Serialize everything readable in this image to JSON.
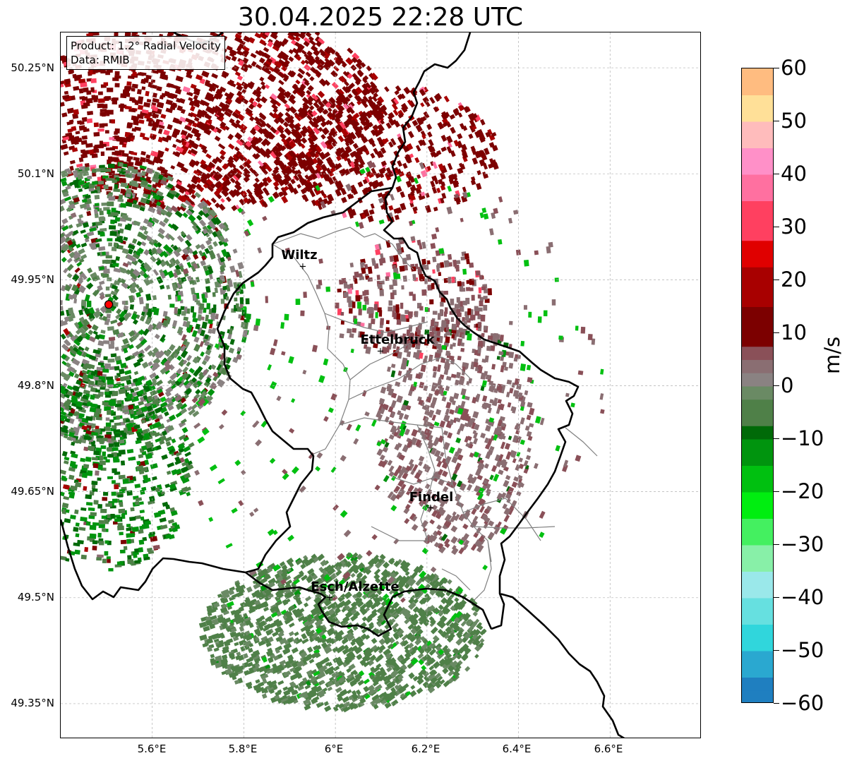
{
  "title": "30.04.2025 22:28 UTC",
  "info": {
    "product": "Product: 1.2° Radial Velocity",
    "source": "Data: RMIB"
  },
  "axes": {
    "lat_ticks": [
      "50.25°N",
      "50.1°N",
      "49.95°N",
      "49.8°N",
      "49.65°N",
      "49.5°N",
      "49.35°N"
    ],
    "lon_ticks": [
      "5.6°E",
      "5.8°E",
      "6°E",
      "6.2°E",
      "6.4°E",
      "6.6°E"
    ],
    "lat_values": [
      50.25,
      50.1,
      49.95,
      49.8,
      49.65,
      49.5,
      49.35
    ],
    "lon_values": [
      5.6,
      5.8,
      6.0,
      6.2,
      6.4,
      6.6
    ],
    "lon_range": [
      5.4,
      6.8
    ],
    "lat_range": [
      49.3,
      50.3
    ]
  },
  "cities": [
    {
      "name": "Wiltz",
      "lon": 5.94,
      "lat": 49.97
    },
    {
      "name": "Ettelbruck",
      "lon": 6.1,
      "lat": 49.85
    },
    {
      "name": "Findel",
      "lon": 6.21,
      "lat": 49.63
    },
    {
      "name": "Esch/Alzette",
      "lon": 5.99,
      "lat": 49.5
    }
  ],
  "radar_site": {
    "lon": 5.505,
    "lat": 49.915,
    "color": "#ff0000"
  },
  "colorbar": {
    "label": "m/s",
    "min": -60,
    "max": 60,
    "ticks": [
      "60",
      "50",
      "40",
      "30",
      "20",
      "10",
      "0",
      "−10",
      "−20",
      "−30",
      "−40",
      "−50",
      "−60"
    ],
    "tick_values": [
      60,
      50,
      40,
      30,
      20,
      10,
      0,
      -10,
      -20,
      -30,
      -40,
      -50,
      -60
    ],
    "stops": [
      {
        "v": -60,
        "color": "#1f7fc0"
      },
      {
        "v": -55,
        "color": "#2aa8d0"
      },
      {
        "v": -50,
        "color": "#30d6dc"
      },
      {
        "v": -45,
        "color": "#66e0e0"
      },
      {
        "v": -40,
        "color": "#9ae8ea"
      },
      {
        "v": -36,
        "color": "#bdeff0"
      },
      {
        "v": -34,
        "color": "#88f0a8"
      },
      {
        "v": -30,
        "color": "#44f060"
      },
      {
        "v": -25,
        "color": "#00ee10"
      },
      {
        "v": -20,
        "color": "#00c010"
      },
      {
        "v": -15,
        "color": "#00940e"
      },
      {
        "v": -10,
        "color": "#006a08"
      },
      {
        "v": -7,
        "color": "#4f8048"
      },
      {
        "v": -3,
        "color": "#6a8a64"
      },
      {
        "v": 0,
        "color": "#8a8282"
      },
      {
        "v": 3,
        "color": "#8a6e72"
      },
      {
        "v": 6,
        "color": "#8a5058"
      },
      {
        "v": 8,
        "color": "#7c0000"
      },
      {
        "v": 15,
        "color": "#a80000"
      },
      {
        "v": 22,
        "color": "#e00000"
      },
      {
        "v": 27,
        "color": "#ff1010"
      },
      {
        "v": 28,
        "color": "#ff4060"
      },
      {
        "v": 35,
        "color": "#ff70a0"
      },
      {
        "v": 40,
        "color": "#ff90c8"
      },
      {
        "v": 45,
        "color": "#ffbcbc"
      },
      {
        "v": 50,
        "color": "#ffe098"
      },
      {
        "v": 55,
        "color": "#ffbc80"
      },
      {
        "v": 60,
        "color": "#ff9a50"
      }
    ]
  }
}
